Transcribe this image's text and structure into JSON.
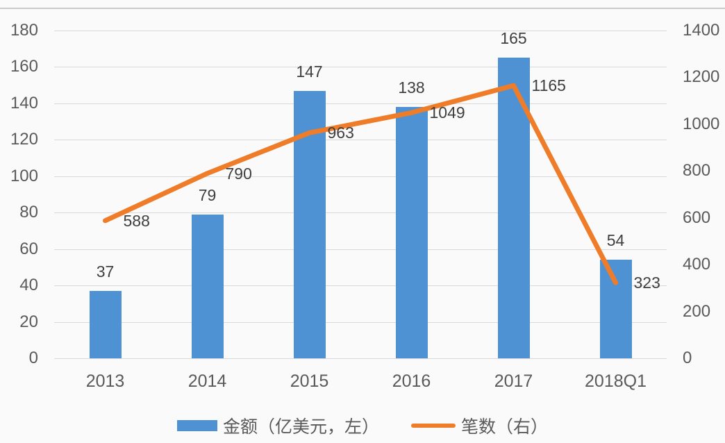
{
  "chart_data": {
    "type": "bar",
    "subtype": "combo-bar-line-dual-axis",
    "categories": [
      "2013",
      "2014",
      "2015",
      "2016",
      "2017",
      "2018Q1"
    ],
    "series": [
      {
        "name": "金额（亿美元，左）",
        "type": "bar",
        "axis": "left",
        "values": [
          37,
          79,
          147,
          138,
          165,
          54
        ],
        "data_labels": [
          "37",
          "79",
          "147",
          "138",
          "165",
          "54"
        ]
      },
      {
        "name": "笔数（右）",
        "type": "line",
        "axis": "right",
        "values": [
          588,
          790,
          963,
          1049,
          1165,
          323
        ],
        "data_labels": [
          "588",
          "790",
          "963",
          "1049",
          "1165",
          "323"
        ]
      }
    ],
    "title": "",
    "xlabel": "",
    "ylabel_left": "",
    "ylabel_right": "",
    "left_axis": {
      "min": 0,
      "max": 180,
      "step": 20,
      "ticks": [
        "180",
        "160",
        "140",
        "120",
        "100",
        "80",
        "60",
        "40",
        "20",
        "0"
      ]
    },
    "right_axis": {
      "min": 0,
      "max": 1400,
      "step": 200,
      "ticks": [
        "1400",
        "1200",
        "1000",
        "800",
        "600",
        "400",
        "200",
        "0"
      ]
    },
    "grid": "horizontal-only",
    "legend_position": "bottom"
  },
  "legend": {
    "bar_label": "金额（亿美元，左）",
    "line_label": "笔数（右）"
  },
  "colors": {
    "bar": "#4f92d3",
    "line": "#ee7c28",
    "gridline": "#d9d9d9",
    "tick_text": "#5a5a5a",
    "data_label_text": "#3f3f3f",
    "background": "#fafafa",
    "divider": "#cbcbcb"
  }
}
